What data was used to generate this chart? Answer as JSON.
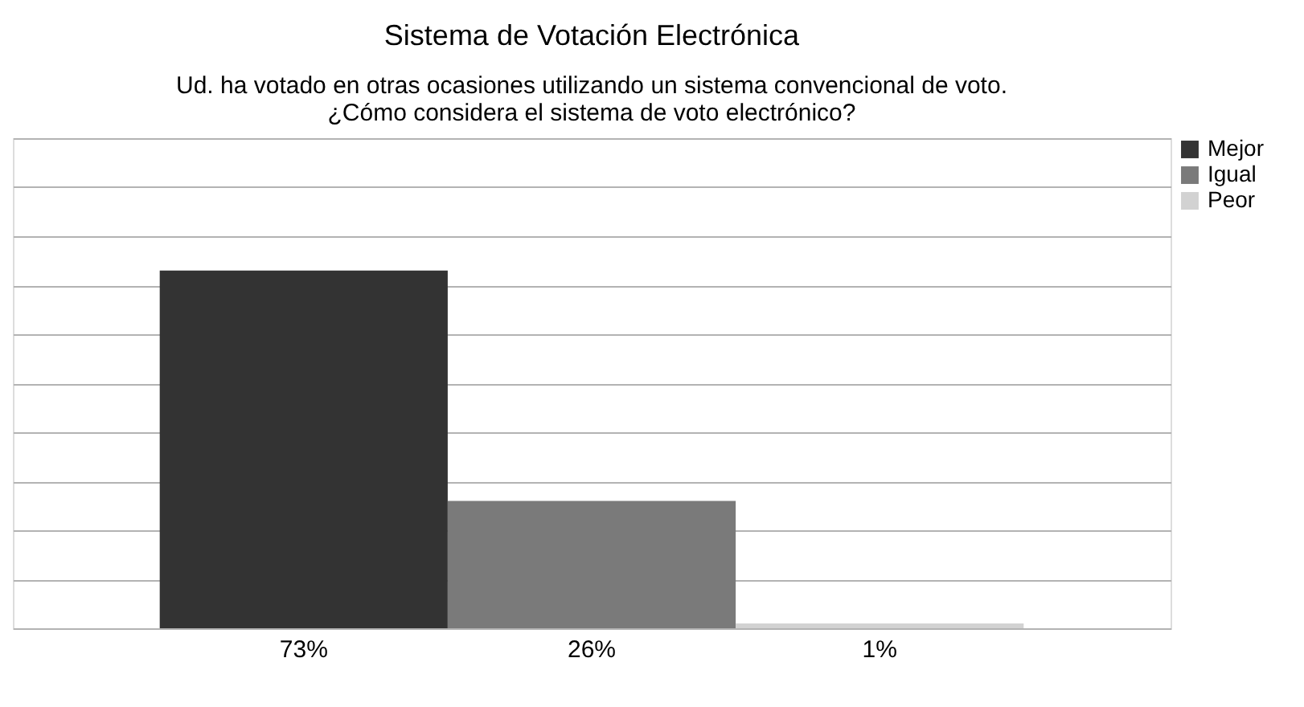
{
  "chart_data": {
    "type": "bar",
    "title": "Sistema de Votación Electrónica",
    "subtitle": "Ud. ha votado en otras ocasiones utilizando un sistema convencional de voto.\n¿Cómo considera el sistema de voto electrónico?",
    "categories": [
      null
    ],
    "series": [
      {
        "name": "Mejor",
        "color": "#333333",
        "values": [
          73
        ],
        "value_labels": [
          "73%"
        ]
      },
      {
        "name": "Igual",
        "color": "#7a7a7a",
        "values": [
          26
        ],
        "value_labels": [
          "26%"
        ]
      },
      {
        "name": "Peor",
        "color": "#d2d2d2",
        "values": [
          1
        ],
        "value_labels": [
          "1%"
        ]
      }
    ],
    "ylim": [
      0,
      100
    ],
    "yticks": [
      {
        "value": 0,
        "label": null
      },
      {
        "value": 10,
        "label": null
      },
      {
        "value": 20,
        "label": null
      },
      {
        "value": 30,
        "label": null
      },
      {
        "value": 40,
        "label": null
      },
      {
        "value": 50,
        "label": null
      },
      {
        "value": 60,
        "label": null
      },
      {
        "value": 70,
        "label": null
      },
      {
        "value": 80,
        "label": null
      },
      {
        "value": 90,
        "label": null
      },
      {
        "value": 100,
        "label": null
      }
    ],
    "grid": "y",
    "legend": "right",
    "tick_labels": false
  }
}
